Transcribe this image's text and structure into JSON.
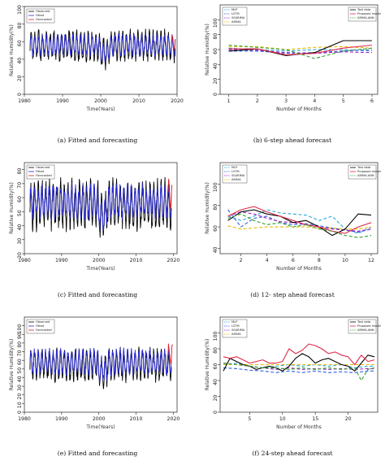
{
  "panels": [
    {
      "id": "a",
      "caption": "(a) Fitted and forecasting",
      "chart_data": {
        "type": "line",
        "xlabel": "Time(Years)",
        "ylabel": "Relative Humidity(%)",
        "xlim": [
          1980,
          2020
        ],
        "ylim": [
          0,
          100
        ],
        "xticks": [
          1980,
          1990,
          2000,
          2010,
          2020
        ],
        "yticks": [
          0,
          20,
          40,
          60,
          80,
          100
        ],
        "legend": {
          "position": "top-left",
          "entries": [
            "Observed",
            "Fitted",
            "Forecasted"
          ]
        },
        "series": [
          {
            "name": "Observed",
            "color": "#000000",
            "start": 1981.5,
            "end": 2019.5,
            "center": 55,
            "amplitude": 14
          },
          {
            "name": "Fitted",
            "color": "#2a2ad8",
            "start": 1981.5,
            "end": 2019.5,
            "center": 56,
            "amplitude": 10
          },
          {
            "name": "Forecasted",
            "color": "#e02020",
            "start": 2018.6,
            "end": 2019.6,
            "center": 58,
            "amplitude": 8
          }
        ]
      }
    },
    {
      "id": "b",
      "caption": "(b) 6-step ahead forecast",
      "chart_data": {
        "type": "line",
        "xlabel": "Number of Months",
        "ylabel": "Relative Humidity(%)",
        "xlim": [
          0.7,
          6.2
        ],
        "ylim": [
          0,
          120
        ],
        "xticks": [
          1,
          2,
          3,
          4,
          5,
          6
        ],
        "yticks": [
          0,
          20,
          40,
          60,
          80,
          100
        ],
        "legend_left": {
          "position": "top-left",
          "entries": [
            "MLP",
            "LSTM",
            "SSARIMA",
            "ARIMA"
          ]
        },
        "legend_right": {
          "position": "top-right",
          "entries": [
            "Test data",
            "Proposed model",
            "ARIMA-ANN"
          ]
        },
        "series": [
          {
            "name": "MLP",
            "color": "#2aa8d8",
            "dash": true,
            "x": [
              1,
              2,
              3,
              4,
              5,
              6
            ],
            "y": [
              62,
              60,
              58,
              60,
              60,
              58
            ]
          },
          {
            "name": "LSTM",
            "color": "#3060e0",
            "dash": true,
            "x": [
              1,
              2,
              3,
              4,
              5,
              6
            ],
            "y": [
              58,
              58,
              55,
              56,
              58,
              60
            ]
          },
          {
            "name": "SSARIMA",
            "color": "#a020c0",
            "dash": true,
            "x": [
              1,
              2,
              3,
              4,
              5,
              6
            ],
            "y": [
              60,
              59,
              56,
              55,
              57,
              56
            ]
          },
          {
            "name": "ARIMA",
            "color": "#e8b800",
            "dash": true,
            "x": [
              1,
              2,
              3,
              4,
              5,
              6
            ],
            "y": [
              64,
              64,
              60,
              63,
              64,
              62
            ]
          },
          {
            "name": "Test data",
            "color": "#000000",
            "dash": false,
            "x": [
              1,
              2,
              3,
              4,
              5,
              6
            ],
            "y": [
              58,
              61,
              52,
              56,
              72,
              72
            ]
          },
          {
            "name": "Proposed model",
            "color": "#e02a4a",
            "dash": false,
            "x": [
              1,
              2,
              3,
              4,
              5,
              6
            ],
            "y": [
              61,
              61,
              53,
              55,
              62,
              66
            ]
          },
          {
            "name": "ARIMA-ANN",
            "color": "#30a030",
            "dash": true,
            "x": [
              1,
              2,
              3,
              4,
              5,
              6
            ],
            "y": [
              66,
              63,
              60,
              48,
              58,
              62
            ]
          }
        ]
      }
    },
    {
      "id": "c",
      "caption": "(c) Fitted and forecasting",
      "chart_data": {
        "type": "line",
        "xlabel": "Time(Years)",
        "ylabel": "Relative Humidity(%)",
        "xlim": [
          1980,
          2021
        ],
        "ylim": [
          20,
          85
        ],
        "xticks": [
          1980,
          1990,
          2000,
          2010,
          2020
        ],
        "yticks": [
          20,
          30,
          40,
          50,
          60,
          70,
          80
        ],
        "legend": {
          "position": "top-left",
          "entries": [
            "Observed",
            "Fitted",
            "Forecasted"
          ]
        },
        "series": [
          {
            "name": "Observed",
            "color": "#000000",
            "start": 1981.5,
            "end": 2019.5,
            "center": 55,
            "amplitude": 14
          },
          {
            "name": "Fitted",
            "color": "#2a2ad8",
            "start": 1981.5,
            "end": 2019.5,
            "center": 57,
            "amplitude": 10
          },
          {
            "name": "Forecasted",
            "color": "#e02020",
            "start": 2018.6,
            "end": 2019.6,
            "center": 62,
            "amplitude": 9
          }
        ]
      }
    },
    {
      "id": "d",
      "caption": "(d) 12- step ahead forecast",
      "chart_data": {
        "type": "line",
        "xlabel": "Number of Months",
        "ylabel": "Relative Humidity(%)",
        "xlim": [
          0.4,
          12.5
        ],
        "ylim": [
          35,
          120
        ],
        "xticks": [
          2,
          4,
          6,
          8,
          10,
          12
        ],
        "yticks": [
          40,
          60,
          80,
          100
        ],
        "legend_left": {
          "position": "top-left",
          "entries": [
            "MLP",
            "LSTM",
            "SSARIMA",
            "ARIMA"
          ]
        },
        "legend_right": {
          "position": "top-right",
          "entries": [
            "Test data",
            "Proposed model",
            "ARIMA-ANN"
          ]
        },
        "series": [
          {
            "name": "MLP",
            "color": "#2aa8d8",
            "dash": true,
            "x": [
              1,
              2,
              3,
              4,
              5,
              6,
              7,
              8,
              9,
              10,
              11,
              12
            ],
            "y": [
              70,
              66,
              70,
              76,
              73,
              72,
              71,
              66,
              70,
              58,
              54,
              60
            ]
          },
          {
            "name": "LSTM",
            "color": "#3060e0",
            "dash": true,
            "x": [
              1,
              2,
              3,
              4,
              5,
              6,
              7,
              8,
              9,
              10,
              11,
              12
            ],
            "y": [
              76,
              60,
              68,
              70,
              64,
              62,
              63,
              61,
              59,
              57,
              55,
              58
            ]
          },
          {
            "name": "SSARIMA",
            "color": "#a020c0",
            "dash": true,
            "x": [
              1,
              2,
              3,
              4,
              5,
              6,
              7,
              8,
              9,
              10,
              11,
              12
            ],
            "y": [
              70,
              74,
              72,
              68,
              65,
              64,
              62,
              60,
              58,
              57,
              56,
              58
            ]
          },
          {
            "name": "ARIMA",
            "color": "#e8b800",
            "dash": true,
            "x": [
              1,
              2,
              3,
              4,
              5,
              6,
              7,
              8,
              9,
              10,
              11,
              12
            ],
            "y": [
              61,
              58,
              59,
              60,
              60,
              60,
              60,
              59,
              59,
              58,
              58,
              60
            ]
          },
          {
            "name": "Test data",
            "color": "#000000",
            "dash": false,
            "x": [
              1,
              2,
              3,
              4,
              5,
              6,
              7,
              8,
              9,
              10,
              11,
              12
            ],
            "y": [
              66,
              74,
              76,
              72,
              70,
              64,
              66,
              60,
              52,
              58,
              72,
              71
            ]
          },
          {
            "name": "Proposed model",
            "color": "#e02a4a",
            "dash": false,
            "x": [
              1,
              2,
              3,
              4,
              5,
              6,
              7,
              8,
              9,
              10,
              11,
              12
            ],
            "y": [
              70,
              76,
              79,
              74,
              70,
              66,
              62,
              60,
              56,
              54,
              60,
              64
            ]
          },
          {
            "name": "ARIMA-ANN",
            "color": "#30a030",
            "dash": true,
            "x": [
              1,
              2,
              3,
              4,
              5,
              6,
              7,
              8,
              9,
              10,
              11,
              12
            ],
            "y": [
              68,
              72,
              66,
              62,
              64,
              60,
              62,
              58,
              56,
              52,
              50,
              52
            ]
          }
        ]
      }
    },
    {
      "id": "e",
      "caption": "(e) Fitted and forecasting",
      "chart_data": {
        "type": "line",
        "xlabel": "Time(Years)",
        "ylabel": "Relative Humidity(%)",
        "xlim": [
          1980,
          2021
        ],
        "ylim": [
          0,
          110
        ],
        "xticks": [
          1980,
          1990,
          2000,
          2010,
          2020
        ],
        "yticks": [
          0,
          10,
          20,
          30,
          40,
          50,
          60,
          70,
          80,
          90,
          100
        ],
        "legend": {
          "position": "top-left",
          "entries": [
            "Observed",
            "Fitted",
            "Forecasted"
          ]
        },
        "series": [
          {
            "name": "Observed",
            "color": "#000000",
            "start": 1981.5,
            "end": 2019.5,
            "center": 55,
            "amplitude": 15
          },
          {
            "name": "Fitted",
            "color": "#2a2ad8",
            "start": 1981.5,
            "end": 2019.5,
            "center": 58,
            "amplitude": 12
          },
          {
            "name": "Forecasted",
            "color": "#e02020",
            "start": 2018.6,
            "end": 2019.8,
            "center": 66,
            "amplitude": 10
          }
        ]
      }
    },
    {
      "id": "f",
      "caption": "(f) 24-step ahead forecast",
      "chart_data": {
        "type": "line",
        "xlabel": "Number of Months",
        "ylabel": "Relative Humidity(%)",
        "xlim": [
          0.5,
          24.5
        ],
        "ylim": [
          0,
          120
        ],
        "xticks": [
          5,
          10,
          15,
          20
        ],
        "yticks": [
          0,
          20,
          40,
          60,
          80,
          100
        ],
        "legend_left": {
          "position": "top-left",
          "entries": [
            "MLP",
            "LSTM",
            "SSARIMA",
            "ARIMA"
          ]
        },
        "legend_right": {
          "position": "top-right",
          "entries": [
            "Test data",
            "Proposed model",
            "ARIMA-ANN"
          ]
        },
        "series": [
          {
            "name": "MLP",
            "color": "#2aa8d8",
            "dash": true,
            "x": [
              1,
              3,
              5,
              7,
              9,
              11,
              13,
              15,
              17,
              19,
              21,
              23,
              24
            ],
            "y": [
              60,
              62,
              58,
              56,
              58,
              60,
              58,
              60,
              58,
              60,
              56,
              58,
              58
            ]
          },
          {
            "name": "LSTM",
            "color": "#3060e0",
            "dash": true,
            "x": [
              1,
              3,
              5,
              7,
              9,
              11,
              13,
              15,
              17,
              19,
              21,
              23,
              24
            ],
            "y": [
              56,
              55,
              53,
              52,
              50,
              52,
              50,
              52,
              50,
              51,
              50,
              52,
              52
            ]
          },
          {
            "name": "SSARIMA",
            "color": "#a020c0",
            "dash": true,
            "x": [
              1,
              3,
              5,
              7,
              9,
              11,
              13,
              15,
              17,
              19,
              21,
              23,
              24
            ],
            "y": [
              62,
              60,
              58,
              56,
              54,
              56,
              54,
              55,
              54,
              55,
              54,
              55,
              55
            ]
          },
          {
            "name": "ARIMA",
            "color": "#e8b800",
            "dash": true,
            "x": [
              1,
              3,
              5,
              7,
              9,
              11,
              13,
              15,
              17,
              19,
              21,
              23,
              24
            ],
            "y": [
              60,
              60,
              60,
              60,
              60,
              60,
              60,
              60,
              60,
              60,
              60,
              60,
              60
            ]
          },
          {
            "name": "Test data",
            "color": "#000000",
            "dash": false,
            "x": [
              1,
              2,
              3,
              4,
              5,
              6,
              7,
              8,
              9,
              10,
              11,
              12,
              13,
              14,
              15,
              16,
              17,
              18,
              19,
              20,
              21,
              22,
              23,
              24
            ],
            "y": [
              52,
              68,
              64,
              60,
              58,
              54,
              56,
              58,
              56,
              52,
              58,
              68,
              74,
              70,
              62,
              66,
              68,
              64,
              60,
              58,
              52,
              62,
              72,
              70
            ]
          },
          {
            "name": "Proposed model",
            "color": "#e02a4a",
            "dash": false,
            "x": [
              1,
              2,
              3,
              4,
              5,
              6,
              7,
              8,
              9,
              10,
              11,
              12,
              13,
              14,
              15,
              16,
              17,
              18,
              19,
              20,
              21,
              22,
              23,
              24
            ],
            "y": [
              70,
              68,
              70,
              66,
              62,
              64,
              66,
              62,
              62,
              64,
              80,
              74,
              78,
              86,
              84,
              80,
              74,
              76,
              72,
              70,
              60,
              72,
              64,
              66
            ]
          },
          {
            "name": "ARIMA-ANN",
            "color": "#30a030",
            "dash": true,
            "x": [
              1,
              3,
              5,
              7,
              9,
              11,
              13,
              15,
              17,
              19,
              21,
              22,
              23,
              24
            ],
            "y": [
              62,
              60,
              58,
              56,
              56,
              54,
              56,
              54,
              56,
              54,
              56,
              40,
              54,
              56
            ]
          }
        ]
      }
    }
  ]
}
